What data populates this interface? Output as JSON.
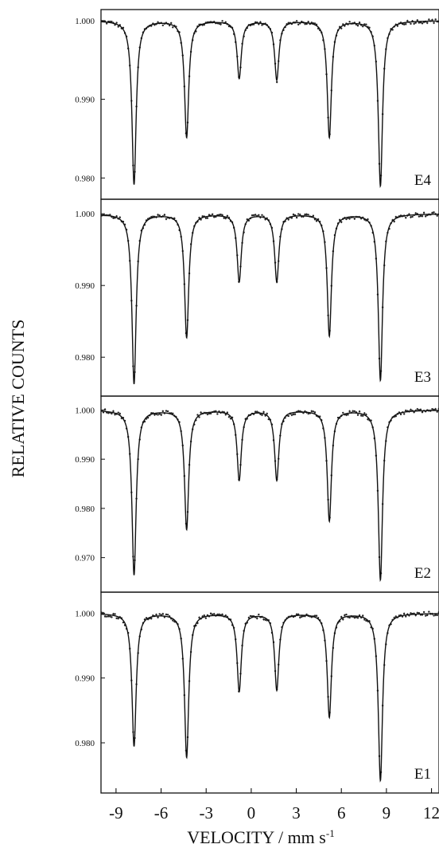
{
  "chart_data": {
    "type": "line",
    "ylabel": "RELATIVE  COUNTS",
    "xlabel": "VELOCITY / mm s",
    "xlabel_sup": "-1",
    "xlim": [
      -10,
      12.5
    ],
    "xticks": [
      -9,
      -6,
      -3,
      0,
      3,
      6,
      9,
      12
    ],
    "xtick_labels": [
      "-9",
      "-6",
      "-3",
      "0",
      "3",
      "6",
      "9",
      "12"
    ],
    "grid": false,
    "legend": "none",
    "colors": {
      "line": "#111111",
      "points": "#222222"
    },
    "panels": [
      {
        "label": "E4",
        "ylim": [
          0.9775,
          1.0012
        ],
        "yticks": [
          1.0,
          0.99,
          0.98
        ],
        "ytick_labels": [
          "1.000",
          "0.990",
          "0.980"
        ],
        "peaks": [
          {
            "x": -7.8,
            "y": 0.9792
          },
          {
            "x": -4.3,
            "y": 0.9852
          },
          {
            "x": -0.8,
            "y": 0.9927
          },
          {
            "x": 1.7,
            "y": 0.9925
          },
          {
            "x": 5.2,
            "y": 0.9852
          },
          {
            "x": 8.6,
            "y": 0.979
          }
        ]
      },
      {
        "label": "E3",
        "ylim": [
          0.9748,
          1.0018
        ],
        "yticks": [
          1.0,
          0.99,
          0.98
        ],
        "ytick_labels": [
          "1.000",
          "0.990",
          "0.980"
        ],
        "peaks": [
          {
            "x": -7.8,
            "y": 0.9763
          },
          {
            "x": -4.3,
            "y": 0.9828
          },
          {
            "x": -0.8,
            "y": 0.9906
          },
          {
            "x": 1.7,
            "y": 0.9906
          },
          {
            "x": 5.2,
            "y": 0.983
          },
          {
            "x": 8.6,
            "y": 0.9768
          }
        ]
      },
      {
        "label": "E2",
        "ylim": [
          0.9633,
          1.0025
        ],
        "yticks": [
          1.0,
          0.99,
          0.98,
          0.97
        ],
        "ytick_labels": [
          "1.000",
          "0.990",
          "0.980",
          "0.970"
        ],
        "peaks": [
          {
            "x": -7.8,
            "y": 0.9665
          },
          {
            "x": -4.3,
            "y": 0.9758
          },
          {
            "x": -0.8,
            "y": 0.9858
          },
          {
            "x": 1.7,
            "y": 0.9858
          },
          {
            "x": 5.2,
            "y": 0.9775
          },
          {
            "x": 8.6,
            "y": 0.9655
          }
        ]
      },
      {
        "label": "E1",
        "ylim": [
          0.9725,
          1.003
        ],
        "yticks": [
          1.0,
          0.99,
          0.98
        ],
        "ytick_labels": [
          "1.000",
          "0.990",
          "0.980"
        ],
        "peaks": [
          {
            "x": -7.8,
            "y": 0.9795
          },
          {
            "x": -4.3,
            "y": 0.9778
          },
          {
            "x": -0.8,
            "y": 0.988
          },
          {
            "x": 1.7,
            "y": 0.9882
          },
          {
            "x": 5.2,
            "y": 0.984
          },
          {
            "x": 8.6,
            "y": 0.9742
          }
        ]
      }
    ]
  }
}
